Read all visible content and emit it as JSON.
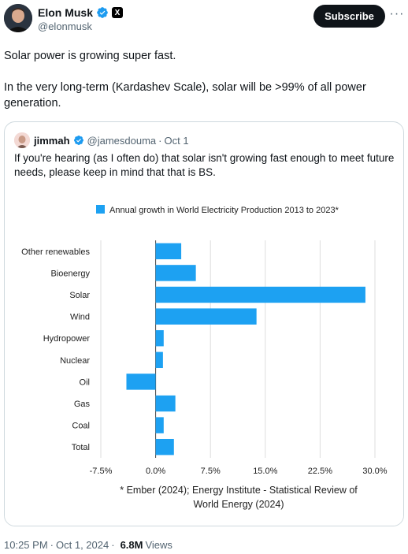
{
  "author": {
    "name": "Elon Musk",
    "handle": "@elonmusk",
    "subscribe_label": "Subscribe",
    "more_label": "···",
    "x_badge": "X"
  },
  "tweet": {
    "line1": "Solar power is growing super fast.",
    "line2": "In the very long-term (Kardashev Scale), solar will be >99% of all power generation."
  },
  "quote": {
    "name": "jimmah",
    "handle": "@jamesdouma",
    "separator": "·",
    "date": "Oct 1",
    "text": "If you're hearing (as I often do) that solar isn't growing fast enough to meet future needs, please keep in mind that that is BS."
  },
  "chart_data": {
    "type": "bar",
    "orientation": "horizontal",
    "categories": [
      "Other renewables",
      "Bioenergy",
      "Solar",
      "Wind",
      "Hydropower",
      "Nuclear",
      "Oil",
      "Gas",
      "Coal",
      "Total"
    ],
    "series": [
      {
        "name": "Annual growth in World Electricity Production 2013 to 2023*",
        "values": [
          3.5,
          5.5,
          28.7,
          13.8,
          1.1,
          1.0,
          -4.0,
          2.7,
          1.1,
          2.5
        ]
      }
    ],
    "xlim": [
      -7.5,
      30.0
    ],
    "ticks": [
      -7.5,
      0.0,
      7.5,
      15.0,
      22.5,
      30.0
    ],
    "tick_labels": [
      "-7.5%",
      "0.0%",
      "7.5%",
      "15.0%",
      "22.5%",
      "30.0%"
    ],
    "grid": true,
    "legend_position": "top",
    "bar_color": "#1da1f2",
    "source_line1": "* Ember (2024); Energy Institute - Statistical Review of",
    "source_line2": "World Energy (2024)"
  },
  "footer": {
    "time": "10:25 PM",
    "separator": "·",
    "date": "Oct 1, 2024",
    "views_count": "6.8M",
    "views_label": "Views"
  },
  "colors": {
    "verified_blue": "#1d9bf0",
    "text_secondary": "#536471",
    "border": "#cfd9de"
  }
}
